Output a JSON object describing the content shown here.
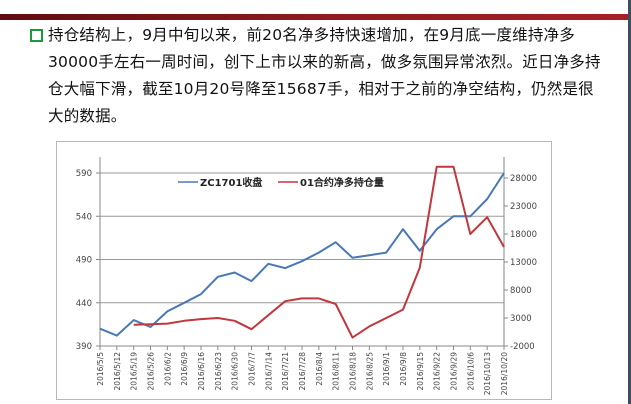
{
  "slide": {
    "bullet_text": "持仓结构上，9月中旬以来，前20名净多持快速增加，在9月底一度维持净多30000手左右一周时间，创下上市以来的新高，做多氛围异常浓烈。近日净多持仓大幅下滑，截至10月20号降至15687手，相对于之前的净空结构，仍然是很大的数据。"
  },
  "chart_data": {
    "type": "line",
    "title": "",
    "legend_position": "top",
    "grid": true,
    "categories": [
      "2016/5/5",
      "2016/5/12",
      "2016/5/19",
      "2016/5/26",
      "2016/6/2",
      "2016/6/9",
      "2016/6/16",
      "2016/6/23",
      "2016/6/30",
      "2016/7/7",
      "2016/7/14",
      "2016/7/21",
      "2016/7/28",
      "2016/8/4",
      "2016/8/11",
      "2016/8/18",
      "2016/8/25",
      "2016/9/1",
      "2016/9/8",
      "2016/9/15",
      "2016/9/22",
      "2016/9/29",
      "2016/10/6",
      "2016/10/13",
      "2016/10/20"
    ],
    "left_axis": {
      "ticks": [
        "590",
        "540",
        "490",
        "440",
        "390"
      ],
      "range": [
        390,
        590
      ]
    },
    "right_axis": {
      "ticks": [
        "28000",
        "23000",
        "18000",
        "13000",
        "8000",
        "3000",
        "-2000"
      ],
      "range": [
        -2000,
        28000
      ]
    },
    "series": [
      {
        "name": "ZC1701收盘",
        "axis": "left",
        "color": "#4a78b5",
        "values": [
          410,
          402,
          420,
          412,
          430,
          440,
          450,
          470,
          475,
          465,
          485,
          480,
          488,
          498,
          510,
          492,
          495,
          498,
          525,
          500,
          525,
          540,
          540,
          560,
          590
        ]
      },
      {
        "name": "01合约净多持仓量",
        "axis": "right",
        "color": "#c0373e",
        "values": [
          null,
          null,
          1800,
          1900,
          2000,
          2500,
          2800,
          3000,
          2500,
          1000,
          3500,
          6000,
          6500,
          6500,
          5500,
          -500,
          1500,
          3000,
          4500,
          12000,
          30000,
          30000,
          18000,
          21000,
          15687
        ]
      }
    ]
  }
}
